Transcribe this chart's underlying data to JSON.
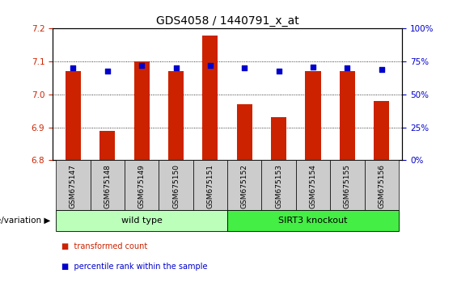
{
  "title": "GDS4058 / 1440791_x_at",
  "samples": [
    "GSM675147",
    "GSM675148",
    "GSM675149",
    "GSM675150",
    "GSM675151",
    "GSM675152",
    "GSM675153",
    "GSM675154",
    "GSM675155",
    "GSM675156"
  ],
  "transformed_counts": [
    7.07,
    6.89,
    7.1,
    7.07,
    7.18,
    6.97,
    6.93,
    7.07,
    7.07,
    6.98
  ],
  "percentile_ranks": [
    70,
    68,
    72,
    70,
    72,
    70,
    68,
    71,
    70,
    69
  ],
  "ylim_left": [
    6.8,
    7.2
  ],
  "ylim_right": [
    0,
    100
  ],
  "yticks_left": [
    6.8,
    6.9,
    7.0,
    7.1,
    7.2
  ],
  "yticks_right": [
    0,
    25,
    50,
    75,
    100
  ],
  "bar_color": "#cc2200",
  "dot_color": "#0000cc",
  "bar_bottom": 6.8,
  "groups": [
    {
      "label": "wild type",
      "indices": [
        0,
        1,
        2,
        3,
        4
      ],
      "color": "#bbffbb"
    },
    {
      "label": "SIRT3 knockout",
      "indices": [
        5,
        6,
        7,
        8,
        9
      ],
      "color": "#44ee44"
    }
  ],
  "genotype_label": "genotype/variation",
  "legend_items": [
    {
      "label": "transformed count",
      "color": "#cc2200"
    },
    {
      "label": "percentile rank within the sample",
      "color": "#0000cc"
    }
  ],
  "tick_color_left": "#cc2200",
  "tick_color_right": "#0000cc",
  "title_fontsize": 10,
  "tick_fontsize": 7.5,
  "sample_fontsize": 6.5,
  "group_fontsize": 8
}
